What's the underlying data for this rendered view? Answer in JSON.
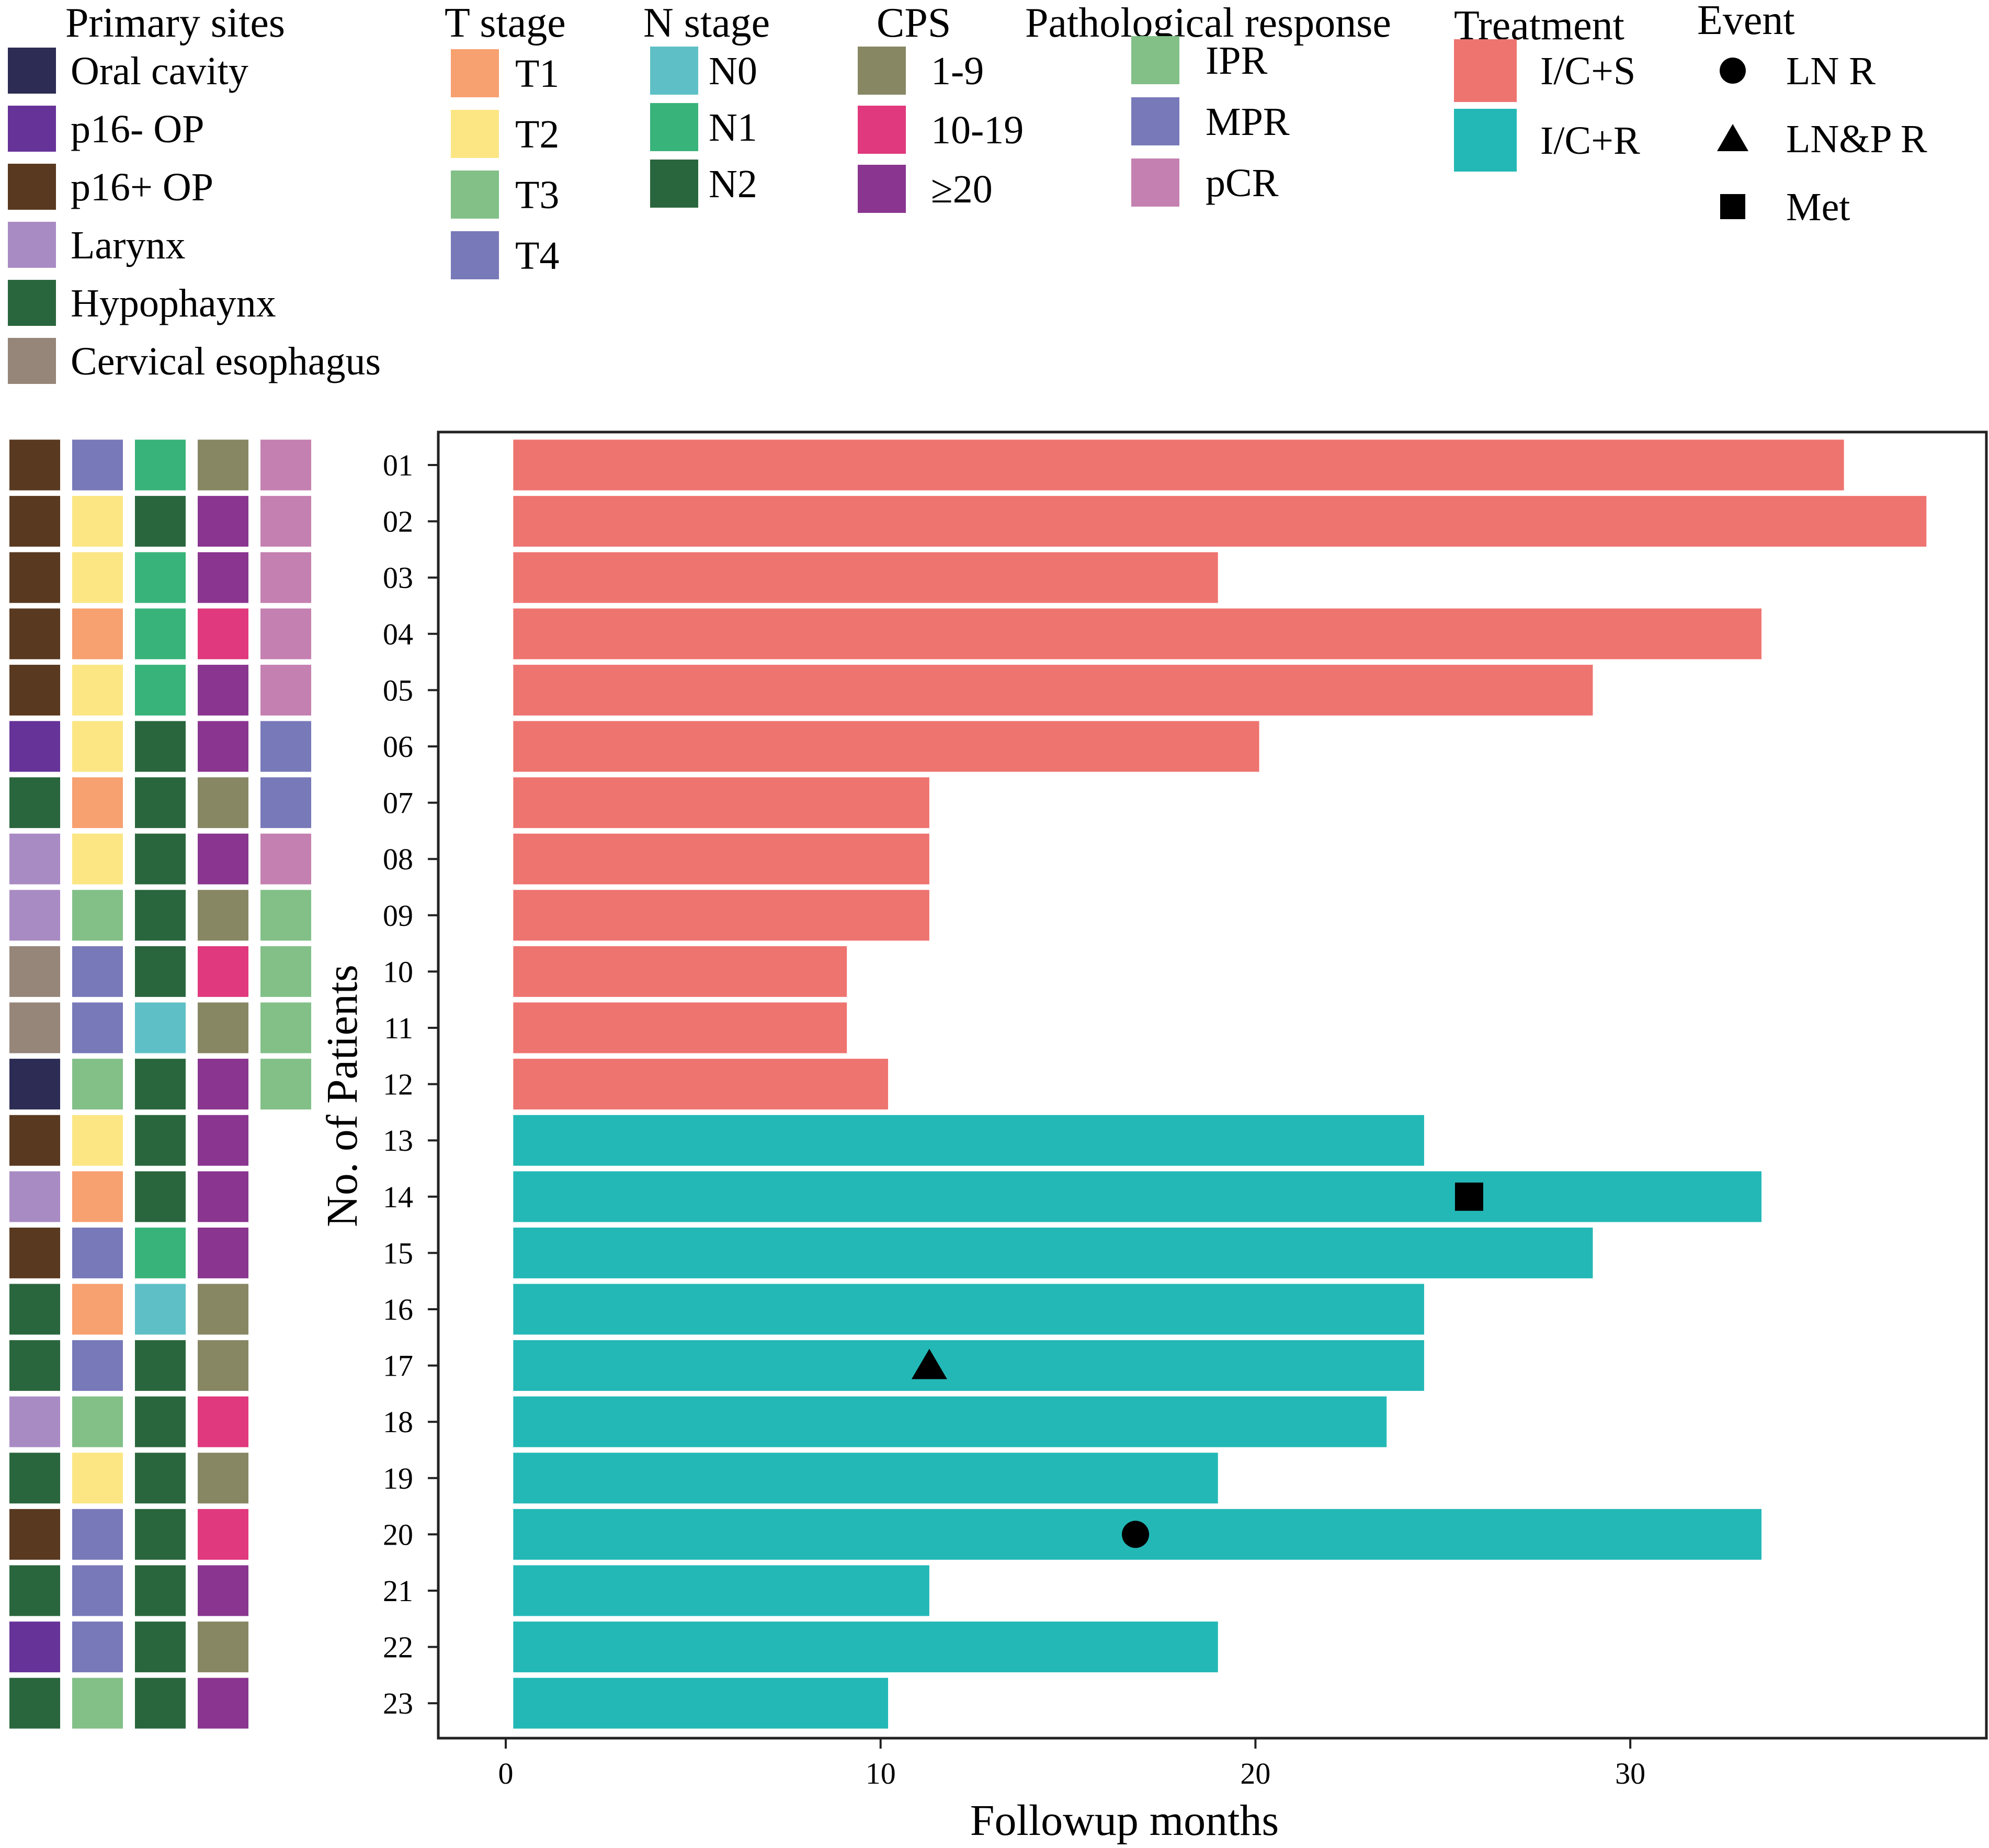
{
  "chart_data": {
    "type": "bar",
    "orientation": "horizontal",
    "xlabel": "Followup months",
    "ylabel": "No. of Patients",
    "xlim": [
      -1.8,
      39.5
    ],
    "xticks": [
      "0",
      "10",
      "20",
      "30"
    ],
    "categories": [
      "01",
      "02",
      "03",
      "04",
      "05",
      "06",
      "07",
      "08",
      "09",
      "10",
      "11",
      "12",
      "13",
      "14",
      "15",
      "16",
      "17",
      "18",
      "19",
      "20",
      "21",
      "22",
      "23"
    ],
    "values": [
      35.7,
      37.9,
      19.0,
      33.5,
      29.0,
      20.1,
      11.3,
      11.3,
      11.3,
      9.1,
      9.1,
      10.2,
      24.5,
      33.5,
      29.0,
      24.5,
      24.5,
      23.5,
      19.0,
      33.5,
      11.3,
      19.0,
      10.2
    ],
    "treatment": [
      "I/C+S",
      "I/C+S",
      "I/C+S",
      "I/C+S",
      "I/C+S",
      "I/C+S",
      "I/C+S",
      "I/C+S",
      "I/C+S",
      "I/C+S",
      "I/C+S",
      "I/C+S",
      "I/C+R",
      "I/C+R",
      "I/C+R",
      "I/C+R",
      "I/C+R",
      "I/C+R",
      "I/C+R",
      "I/C+R",
      "I/C+R",
      "I/C+R",
      "I/C+R"
    ],
    "events": [
      {
        "patient": "14",
        "month": 25.7,
        "type": "Met"
      },
      {
        "patient": "17",
        "month": 11.3,
        "type": "LN&P R"
      },
      {
        "patient": "20",
        "month": 16.8,
        "type": "LN R"
      }
    ],
    "annotation_columns": [
      {
        "name": "Primary sites",
        "values": [
          "p16+ OP",
          "p16+ OP",
          "p16+ OP",
          "p16+ OP",
          "p16+ OP",
          "p16- OP",
          "Hypophaynx",
          "Larynx",
          "Larynx",
          "Cervical esophagus",
          "Cervical esophagus",
          "Oral cavity",
          "p16+ OP",
          "Larynx",
          "p16+ OP",
          "Hypophaynx",
          "Hypophaynx",
          "Larynx",
          "Hypophaynx",
          "p16+ OP",
          "Hypophaynx",
          "p16- OP",
          "Hypophaynx"
        ]
      },
      {
        "name": "T stage",
        "values": [
          "T4",
          "T2",
          "T2",
          "T1",
          "T2",
          "T2",
          "T1",
          "T2",
          "T3",
          "T4",
          "T4",
          "T3",
          "T2",
          "T1",
          "T4",
          "T1",
          "T4",
          "T3",
          "T2",
          "T4",
          "T4",
          "T4",
          "T3"
        ]
      },
      {
        "name": "N stage",
        "values": [
          "N1",
          "N2",
          "N1",
          "N1",
          "N1",
          "N2",
          "N2",
          "N2",
          "N2",
          "N2",
          "N0",
          "N2",
          "N2",
          "N2",
          "N1",
          "N0",
          "N2",
          "N2",
          "N2",
          "N2",
          "N2",
          "N2",
          "N2"
        ]
      },
      {
        "name": "CPS",
        "values": [
          "1-9",
          "≥20",
          "≥20",
          "10-19",
          "≥20",
          "≥20",
          "1-9",
          "≥20",
          "1-9",
          "10-19",
          "1-9",
          "≥20",
          "≥20",
          "≥20",
          "≥20",
          "1-9",
          "1-9",
          "10-19",
          "1-9",
          "10-19",
          "≥20",
          "1-9",
          "≥20"
        ]
      },
      {
        "name": "Pathological response",
        "values": [
          "pCR",
          "pCR",
          "pCR",
          "pCR",
          "pCR",
          "MPR",
          "MPR",
          "pCR",
          "IPR",
          "IPR",
          "IPR",
          "IPR",
          null,
          null,
          null,
          null,
          null,
          null,
          null,
          null,
          null,
          null,
          null
        ]
      }
    ],
    "legends": [
      {
        "title": "Primary sites",
        "items": [
          {
            "label": "Oral cavity",
            "color": "#2c2c54"
          },
          {
            "label": "p16-  OP",
            "color": "#663399"
          },
          {
            "label": "p16+ OP",
            "color": "#593920"
          },
          {
            "label": "Larynx",
            "color": "#a98bc4"
          },
          {
            "label": "Hypophaynx",
            "color": "#2a663d"
          },
          {
            "label": "Cervical esophagus",
            "color": "#968579"
          }
        ]
      },
      {
        "title": "T stage",
        "items": [
          {
            "label": "T1",
            "color": "#f7a070"
          },
          {
            "label": "T2",
            "color": "#fbe683"
          },
          {
            "label": "T3",
            "color": "#82c088"
          },
          {
            "label": "T4",
            "color": "#7879b9"
          }
        ]
      },
      {
        "title": "N stage",
        "items": [
          {
            "label": "N0",
            "color": "#5ec0c6"
          },
          {
            "label": "N1",
            "color": "#38b37a"
          },
          {
            "label": "N2",
            "color": "#2a663d"
          }
        ]
      },
      {
        "title": "CPS",
        "items": [
          {
            "label": "1-9",
            "color": "#878764"
          },
          {
            "label": "10-19",
            "color": "#e0397d"
          },
          {
            "label": "≥20",
            "color": "#8a3590"
          }
        ]
      },
      {
        "title": "Pathological response",
        "items": [
          {
            "label": "IPR",
            "color": "#82c088"
          },
          {
            "label": "MPR",
            "color": "#7879b9"
          },
          {
            "label": "pCR",
            "color": "#c480b0"
          }
        ]
      },
      {
        "title": "Treatment",
        "items": [
          {
            "label": "I/C+S",
            "color": "#ee7470"
          },
          {
            "label": "I/C+R",
            "color": "#23b8b6"
          }
        ]
      },
      {
        "title": "Event",
        "items": [
          {
            "label": "LN R",
            "shape": "circle"
          },
          {
            "label": "LN&P R",
            "shape": "triangle"
          },
          {
            "label": "Met",
            "shape": "square"
          }
        ]
      }
    ]
  }
}
